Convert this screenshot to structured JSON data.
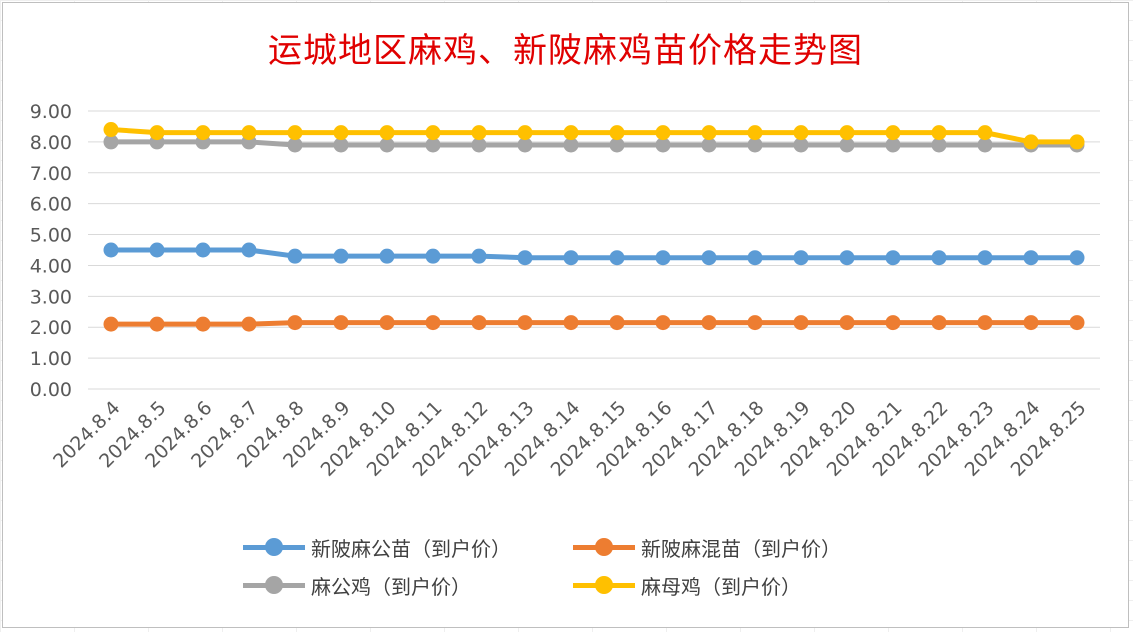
{
  "chart_data": {
    "type": "line",
    "title": "运城地区麻鸡、新陂麻鸡苗价格走势图",
    "xlabel": "",
    "ylabel": "",
    "ylim": [
      0,
      9
    ],
    "yticks": [
      "0.00",
      "1.00",
      "2.00",
      "3.00",
      "4.00",
      "5.00",
      "6.00",
      "7.00",
      "8.00",
      "9.00"
    ],
    "grid": true,
    "legend_position": "bottom",
    "categories": [
      "2024.8.4",
      "2024.8.5",
      "2024.8.6",
      "2024.8.7",
      "2024.8.8",
      "2024.8.9",
      "2024.8.10",
      "2024.8.11",
      "2024.8.12",
      "2024.8.13",
      "2024.8.14",
      "2024.8.15",
      "2024.8.16",
      "2024.8.17",
      "2024.8.18",
      "2024.8.19",
      "2024.8.20",
      "2024.8.21",
      "2024.8.22",
      "2024.8.23",
      "2024.8.24",
      "2024.8.25"
    ],
    "series": [
      {
        "name": "新陂麻公苗（到户价）",
        "color": "#5b9bd5",
        "values": [
          4.5,
          4.5,
          4.5,
          4.5,
          4.3,
          4.3,
          4.3,
          4.3,
          4.3,
          4.25,
          4.25,
          4.25,
          4.25,
          4.25,
          4.25,
          4.25,
          4.25,
          4.25,
          4.25,
          4.25,
          4.25,
          4.25
        ]
      },
      {
        "name": "新陂麻混苗（到户价）",
        "color": "#ed7d31",
        "values": [
          2.1,
          2.1,
          2.1,
          2.1,
          2.15,
          2.15,
          2.15,
          2.15,
          2.15,
          2.15,
          2.15,
          2.15,
          2.15,
          2.15,
          2.15,
          2.15,
          2.15,
          2.15,
          2.15,
          2.15,
          2.15,
          2.15
        ]
      },
      {
        "name": "麻公鸡（到户价）",
        "color": "#a5a5a5",
        "values": [
          8.0,
          8.0,
          8.0,
          8.0,
          7.9,
          7.9,
          7.9,
          7.9,
          7.9,
          7.9,
          7.9,
          7.9,
          7.9,
          7.9,
          7.9,
          7.9,
          7.9,
          7.9,
          7.9,
          7.9,
          7.9,
          7.9
        ]
      },
      {
        "name": "麻母鸡（到户价）",
        "color": "#ffc000",
        "values": [
          8.4,
          8.3,
          8.3,
          8.3,
          8.3,
          8.3,
          8.3,
          8.3,
          8.3,
          8.3,
          8.3,
          8.3,
          8.3,
          8.3,
          8.3,
          8.3,
          8.3,
          8.3,
          8.3,
          8.3,
          8.0,
          8.0
        ]
      }
    ]
  }
}
